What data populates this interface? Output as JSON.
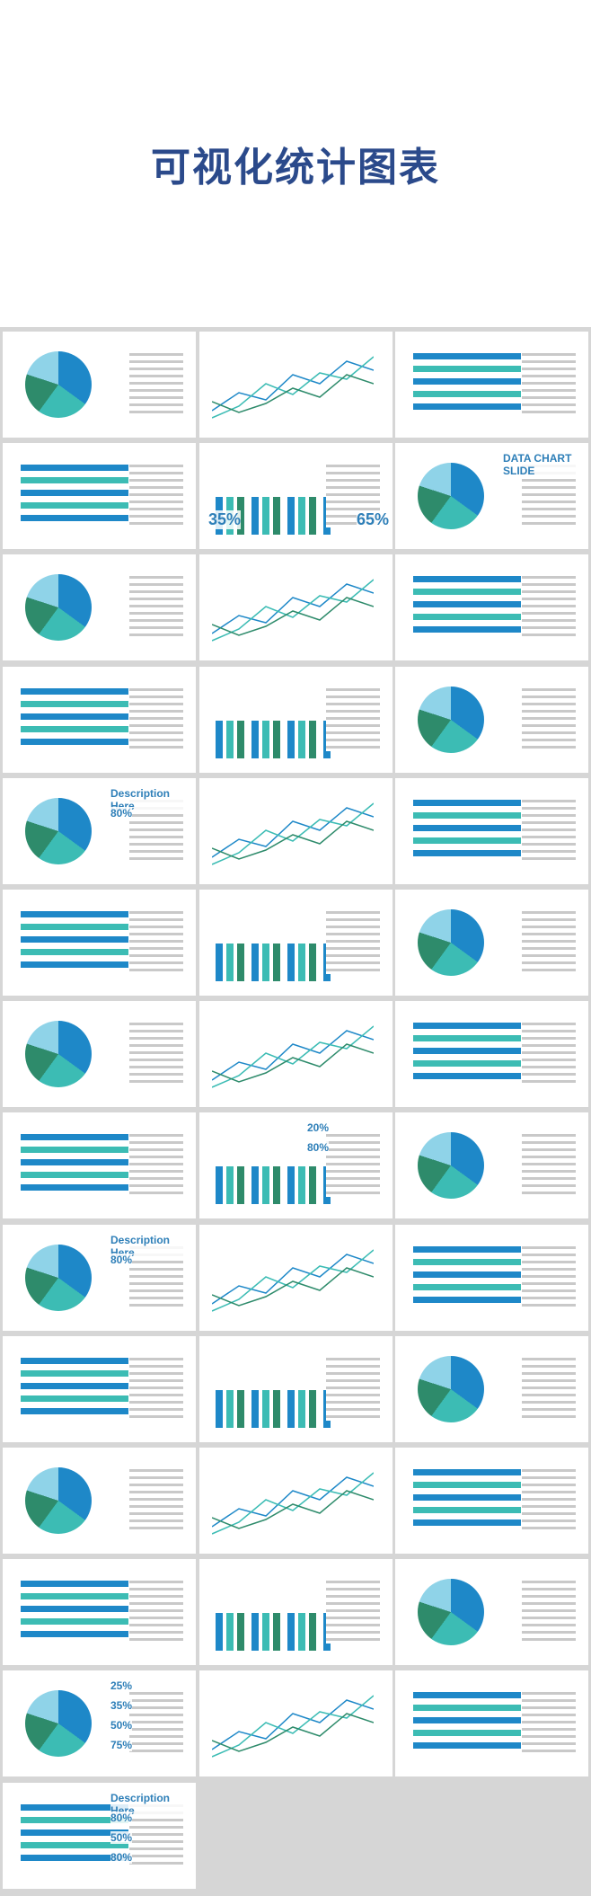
{
  "header": {
    "title": "可视化统计图表"
  },
  "slides": [
    {
      "texts": [
        "35%",
        "65%"
      ]
    },
    {
      "texts": [
        "DATA CHART SLIDE"
      ]
    },
    {
      "texts": [
        "Description Here",
        "80%"
      ]
    },
    {
      "texts": [
        "20%",
        "80%"
      ]
    },
    {
      "texts": [
        "Description Here",
        "80%"
      ]
    },
    {
      "texts": [
        "25%",
        "35%",
        "50%",
        "75%"
      ]
    },
    {
      "texts": [
        "Description Here",
        "80%",
        "50%",
        "80%"
      ]
    }
  ]
}
